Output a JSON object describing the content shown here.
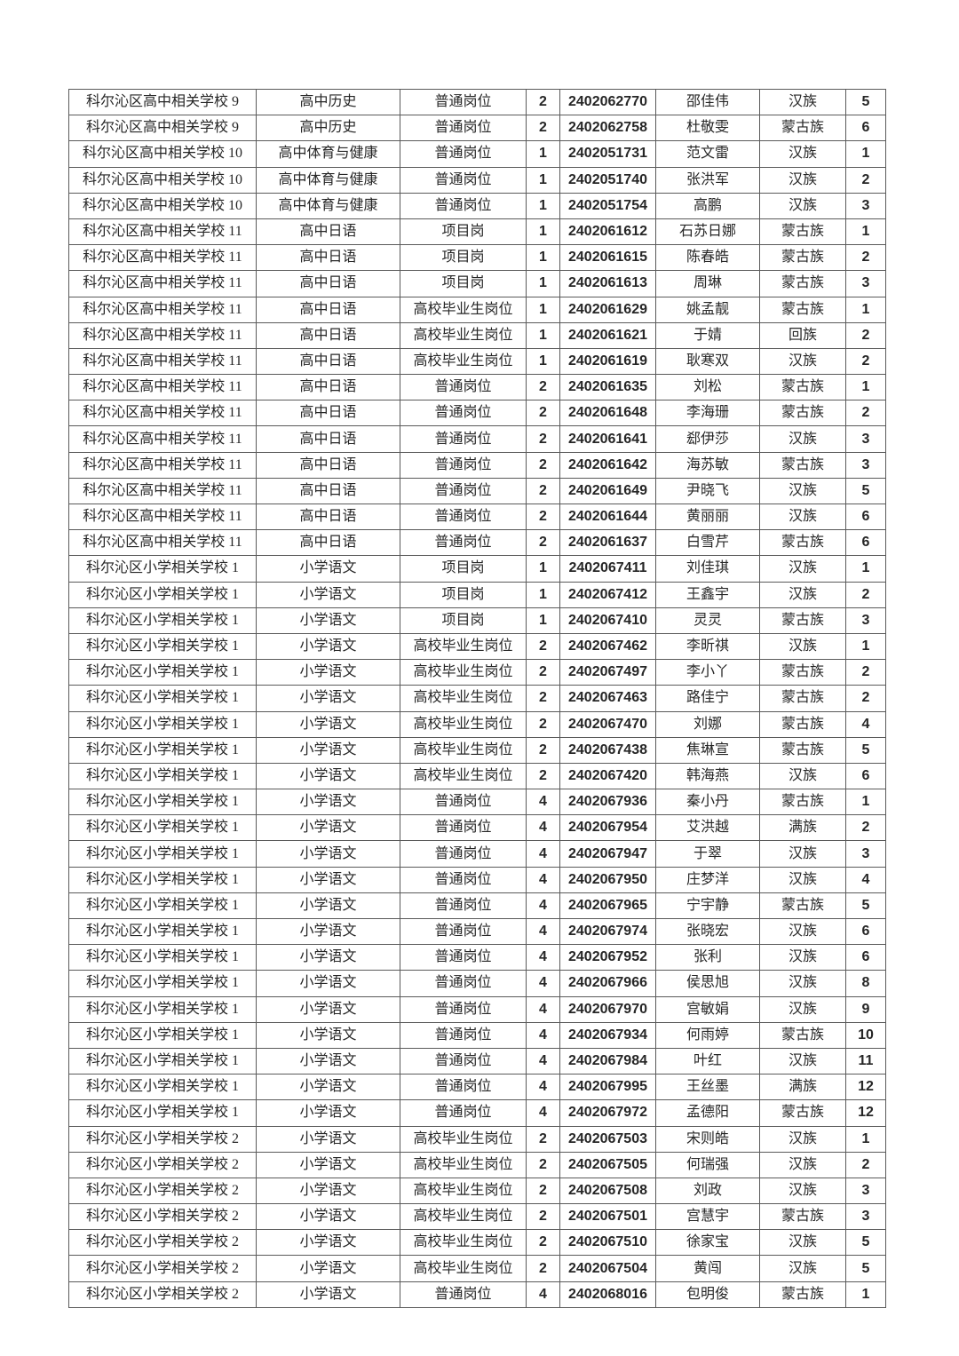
{
  "page": {
    "background": "#ffffff",
    "border_color": "#5a5a5a"
  },
  "table": {
    "columns": [
      "school",
      "subject",
      "position_type",
      "count",
      "candidate_id",
      "name",
      "ethnicity",
      "rank"
    ],
    "rows": [
      [
        "科尔沁区高中相关学校 9",
        "高中历史",
        "普通岗位",
        "2",
        "2402062770",
        "邵佳伟",
        "汉族",
        "5"
      ],
      [
        "科尔沁区高中相关学校 9",
        "高中历史",
        "普通岗位",
        "2",
        "2402062758",
        "杜敬雯",
        "蒙古族",
        "6"
      ],
      [
        "科尔沁区高中相关学校 10",
        "高中体育与健康",
        "普通岗位",
        "1",
        "2402051731",
        "范文雷",
        "汉族",
        "1"
      ],
      [
        "科尔沁区高中相关学校 10",
        "高中体育与健康",
        "普通岗位",
        "1",
        "2402051740",
        "张洪军",
        "汉族",
        "2"
      ],
      [
        "科尔沁区高中相关学校 10",
        "高中体育与健康",
        "普通岗位",
        "1",
        "2402051754",
        "高鹏",
        "汉族",
        "3"
      ],
      [
        "科尔沁区高中相关学校 11",
        "高中日语",
        "项目岗",
        "1",
        "2402061612",
        "石苏日娜",
        "蒙古族",
        "1"
      ],
      [
        "科尔沁区高中相关学校 11",
        "高中日语",
        "项目岗",
        "1",
        "2402061615",
        "陈春皓",
        "蒙古族",
        "2"
      ],
      [
        "科尔沁区高中相关学校 11",
        "高中日语",
        "项目岗",
        "1",
        "2402061613",
        "周琳",
        "蒙古族",
        "3"
      ],
      [
        "科尔沁区高中相关学校 11",
        "高中日语",
        "高校毕业生岗位",
        "1",
        "2402061629",
        "姚孟靓",
        "蒙古族",
        "1"
      ],
      [
        "科尔沁区高中相关学校 11",
        "高中日语",
        "高校毕业生岗位",
        "1",
        "2402061621",
        "于婧",
        "回族",
        "2"
      ],
      [
        "科尔沁区高中相关学校 11",
        "高中日语",
        "高校毕业生岗位",
        "1",
        "2402061619",
        "耿寒双",
        "汉族",
        "2"
      ],
      [
        "科尔沁区高中相关学校 11",
        "高中日语",
        "普通岗位",
        "2",
        "2402061635",
        "刘松",
        "蒙古族",
        "1"
      ],
      [
        "科尔沁区高中相关学校 11",
        "高中日语",
        "普通岗位",
        "2",
        "2402061648",
        "李海珊",
        "蒙古族",
        "2"
      ],
      [
        "科尔沁区高中相关学校 11",
        "高中日语",
        "普通岗位",
        "2",
        "2402061641",
        "郄伊莎",
        "汉族",
        "3"
      ],
      [
        "科尔沁区高中相关学校 11",
        "高中日语",
        "普通岗位",
        "2",
        "2402061642",
        "海苏敏",
        "蒙古族",
        "3"
      ],
      [
        "科尔沁区高中相关学校 11",
        "高中日语",
        "普通岗位",
        "2",
        "2402061649",
        "尹晓飞",
        "汉族",
        "5"
      ],
      [
        "科尔沁区高中相关学校 11",
        "高中日语",
        "普通岗位",
        "2",
        "2402061644",
        "黄丽丽",
        "汉族",
        "6"
      ],
      [
        "科尔沁区高中相关学校 11",
        "高中日语",
        "普通岗位",
        "2",
        "2402061637",
        "白雪芹",
        "蒙古族",
        "6"
      ],
      [
        "科尔沁区小学相关学校 1",
        "小学语文",
        "项目岗",
        "1",
        "2402067411",
        "刘佳琪",
        "汉族",
        "1"
      ],
      [
        "科尔沁区小学相关学校 1",
        "小学语文",
        "项目岗",
        "1",
        "2402067412",
        "王鑫宇",
        "汉族",
        "2"
      ],
      [
        "科尔沁区小学相关学校 1",
        "小学语文",
        "项目岗",
        "1",
        "2402067410",
        "灵灵",
        "蒙古族",
        "3"
      ],
      [
        "科尔沁区小学相关学校 1",
        "小学语文",
        "高校毕业生岗位",
        "2",
        "2402067462",
        "李昕祺",
        "汉族",
        "1"
      ],
      [
        "科尔沁区小学相关学校 1",
        "小学语文",
        "高校毕业生岗位",
        "2",
        "2402067497",
        "李小丫",
        "蒙古族",
        "2"
      ],
      [
        "科尔沁区小学相关学校 1",
        "小学语文",
        "高校毕业生岗位",
        "2",
        "2402067463",
        "路佳宁",
        "蒙古族",
        "2"
      ],
      [
        "科尔沁区小学相关学校 1",
        "小学语文",
        "高校毕业生岗位",
        "2",
        "2402067470",
        "刘娜",
        "蒙古族",
        "4"
      ],
      [
        "科尔沁区小学相关学校 1",
        "小学语文",
        "高校毕业生岗位",
        "2",
        "2402067438",
        "焦琳宣",
        "蒙古族",
        "5"
      ],
      [
        "科尔沁区小学相关学校 1",
        "小学语文",
        "高校毕业生岗位",
        "2",
        "2402067420",
        "韩海燕",
        "汉族",
        "6"
      ],
      [
        "科尔沁区小学相关学校 1",
        "小学语文",
        "普通岗位",
        "4",
        "2402067936",
        "秦小丹",
        "蒙古族",
        "1"
      ],
      [
        "科尔沁区小学相关学校 1",
        "小学语文",
        "普通岗位",
        "4",
        "2402067954",
        "艾洪越",
        "满族",
        "2"
      ],
      [
        "科尔沁区小学相关学校 1",
        "小学语文",
        "普通岗位",
        "4",
        "2402067947",
        "于翠",
        "汉族",
        "3"
      ],
      [
        "科尔沁区小学相关学校 1",
        "小学语文",
        "普通岗位",
        "4",
        "2402067950",
        "庄梦洋",
        "汉族",
        "4"
      ],
      [
        "科尔沁区小学相关学校 1",
        "小学语文",
        "普通岗位",
        "4",
        "2402067965",
        "宁宇静",
        "蒙古族",
        "5"
      ],
      [
        "科尔沁区小学相关学校 1",
        "小学语文",
        "普通岗位",
        "4",
        "2402067974",
        "张晓宏",
        "汉族",
        "6"
      ],
      [
        "科尔沁区小学相关学校 1",
        "小学语文",
        "普通岗位",
        "4",
        "2402067952",
        "张利",
        "汉族",
        "6"
      ],
      [
        "科尔沁区小学相关学校 1",
        "小学语文",
        "普通岗位",
        "4",
        "2402067966",
        "侯思旭",
        "汉族",
        "8"
      ],
      [
        "科尔沁区小学相关学校 1",
        "小学语文",
        "普通岗位",
        "4",
        "2402067970",
        "宫敏娟",
        "汉族",
        "9"
      ],
      [
        "科尔沁区小学相关学校 1",
        "小学语文",
        "普通岗位",
        "4",
        "2402067934",
        "何雨婷",
        "蒙古族",
        "10"
      ],
      [
        "科尔沁区小学相关学校 1",
        "小学语文",
        "普通岗位",
        "4",
        "2402067984",
        "叶红",
        "汉族",
        "11"
      ],
      [
        "科尔沁区小学相关学校 1",
        "小学语文",
        "普通岗位",
        "4",
        "2402067995",
        "王丝墨",
        "满族",
        "12"
      ],
      [
        "科尔沁区小学相关学校 1",
        "小学语文",
        "普通岗位",
        "4",
        "2402067972",
        "孟德阳",
        "蒙古族",
        "12"
      ],
      [
        "科尔沁区小学相关学校 2",
        "小学语文",
        "高校毕业生岗位",
        "2",
        "2402067503",
        "宋则皓",
        "汉族",
        "1"
      ],
      [
        "科尔沁区小学相关学校 2",
        "小学语文",
        "高校毕业生岗位",
        "2",
        "2402067505",
        "何瑞强",
        "汉族",
        "2"
      ],
      [
        "科尔沁区小学相关学校 2",
        "小学语文",
        "高校毕业生岗位",
        "2",
        "2402067508",
        "刘政",
        "汉族",
        "3"
      ],
      [
        "科尔沁区小学相关学校 2",
        "小学语文",
        "高校毕业生岗位",
        "2",
        "2402067501",
        "宫慧宇",
        "蒙古族",
        "3"
      ],
      [
        "科尔沁区小学相关学校 2",
        "小学语文",
        "高校毕业生岗位",
        "2",
        "2402067510",
        "徐家宝",
        "汉族",
        "5"
      ],
      [
        "科尔沁区小学相关学校 2",
        "小学语文",
        "高校毕业生岗位",
        "2",
        "2402067504",
        "黄闯",
        "汉族",
        "5"
      ],
      [
        "科尔沁区小学相关学校 2",
        "小学语文",
        "普通岗位",
        "4",
        "2402068016",
        "包明俊",
        "蒙古族",
        "1"
      ]
    ]
  }
}
